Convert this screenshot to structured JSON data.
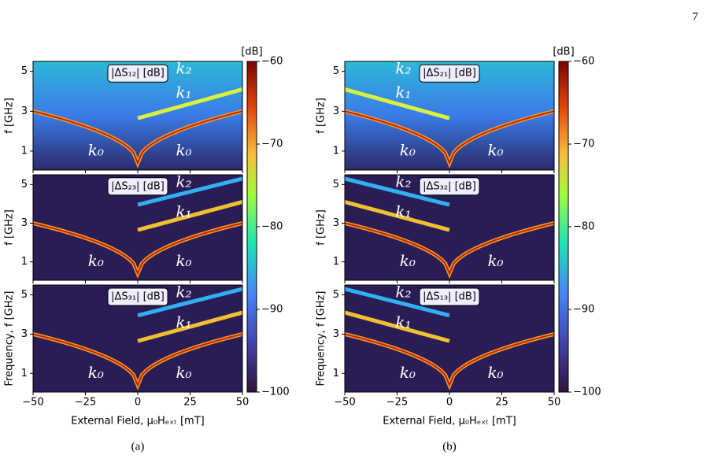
{
  "page_number": "7",
  "figures": [
    {
      "caption": "(a)",
      "xlabel": "External Field, μ₀Hₑₓₜ [mT]",
      "xlim": [
        -50,
        50
      ],
      "xticks": [
        {
          "value": -50,
          "label": "−50"
        },
        {
          "value": -25,
          "label": "−25"
        },
        0,
        25,
        50
      ],
      "ylim": [
        0.05,
        5.5
      ],
      "yticks": [
        1,
        3,
        5
      ],
      "colorbar": {
        "label": "[dB]",
        "lim": [
          -100,
          -60
        ],
        "ticks": [
          {
            "value": -60,
            "label": "−60"
          },
          {
            "value": -70,
            "label": "−70"
          },
          {
            "value": -80,
            "label": "−80"
          },
          {
            "value": -90,
            "label": "−90"
          },
          {
            "value": -100,
            "label": "−100"
          }
        ]
      },
      "panels": [
        {
          "ylabel": "f [GHz]",
          "label": "|ΔS₁₂| [dB]",
          "modes": [
            "k₂",
            "k₁",
            "k₀",
            "k₀"
          ]
        },
        {
          "ylabel": "f [GHz]",
          "label": "|ΔS₂₃| [dB]",
          "modes": [
            "k₂",
            "k₁",
            "k₀",
            "k₀"
          ]
        },
        {
          "ylabel": "Frequency, f [GHz]",
          "label": "|ΔS₃₁| [dB]",
          "modes": [
            "k₂",
            "k₁",
            "k₀",
            "k₀"
          ]
        }
      ]
    },
    {
      "caption": "(b)",
      "xlabel": "External Field, μ₀Hₑₓₜ [mT]",
      "xlim": [
        -50,
        50
      ],
      "xticks": [
        {
          "value": -50,
          "label": "−50"
        },
        {
          "value": -25,
          "label": "−25"
        },
        0,
        25,
        50
      ],
      "ylim": [
        0.05,
        5.5
      ],
      "yticks": [
        1,
        3,
        5
      ],
      "colorbar": {
        "label": "[dB]",
        "lim": [
          -100,
          -60
        ],
        "ticks": [
          {
            "value": -60,
            "label": "−60"
          },
          {
            "value": -70,
            "label": "−70"
          },
          {
            "value": -80,
            "label": "−80"
          },
          {
            "value": -90,
            "label": "−90"
          },
          {
            "value": -100,
            "label": "−100"
          }
        ]
      },
      "panels": [
        {
          "ylabel": "f [GHz]",
          "label": "|ΔS₂₁| [dB]",
          "modes": [
            "k₂",
            "k₁",
            "k₀",
            "k₀"
          ]
        },
        {
          "ylabel": "f [GHz]",
          "label": "|ΔS₃₂| [dB]",
          "modes": [
            "k₂",
            "k₁",
            "k₀",
            "k₀"
          ]
        },
        {
          "ylabel": "Frequency, f [GHz]",
          "label": "|ΔS₁₃| [dB]",
          "modes": [
            "k₂",
            "k₁",
            "k₀",
            "k₀"
          ]
        }
      ]
    }
  ]
}
